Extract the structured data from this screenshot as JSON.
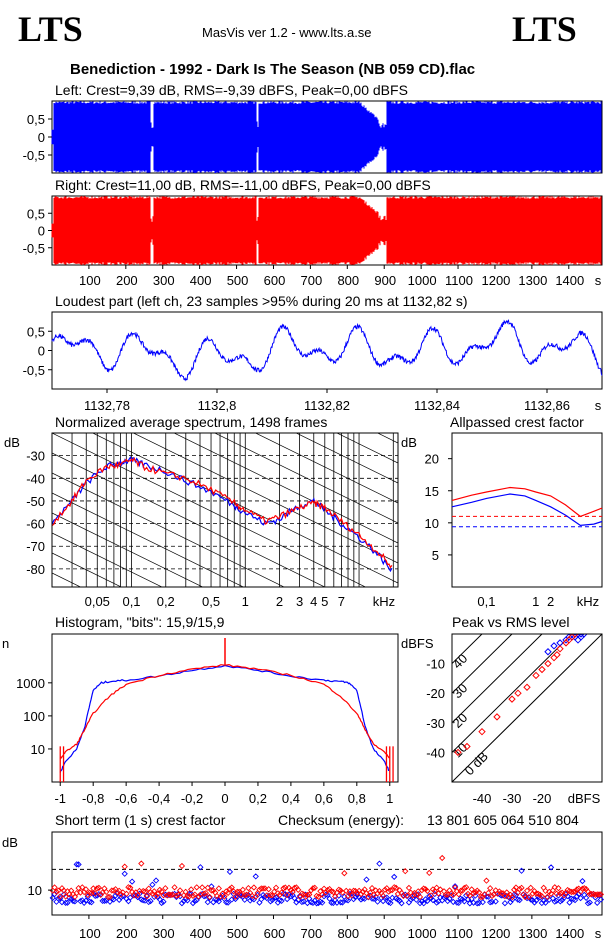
{
  "header": {
    "logo_left": "LTS",
    "logo_right": "LTS",
    "app": "MasVis ver 1.2 - www.lts.a.se",
    "file_title": "Benediction - 1992 - Dark Is The Season (NB 059 CD).flac"
  },
  "colors": {
    "left": "#0000ff",
    "right": "#ff0000",
    "bg": "#ffffff",
    "axis": "#000000"
  },
  "chart_data": [
    {
      "id": "left_waveform",
      "type": "area",
      "title": "Left: Crest=9,39 dB, RMS=-9,39 dBFS, Peak=0,00 dBFS",
      "ylabel_ticks": [
        "0,5",
        "0",
        "-0,5"
      ],
      "ylim": [
        -1,
        1
      ],
      "xlim": [
        0,
        1490
      ],
      "series": [
        {
          "name": "Left",
          "color": "#0000ff"
        }
      ],
      "gaps_s": [
        268,
        275,
        555,
        560,
        885,
        905
      ]
    },
    {
      "id": "right_waveform",
      "type": "area",
      "title": "Right: Crest=11,00 dB, RMS=-11,00 dBFS, Peak=0,00 dBFS",
      "ylabel_ticks": [
        "0,5",
        "0",
        "-0,5"
      ],
      "ylim": [
        -1,
        1
      ],
      "xlim": [
        0,
        1490
      ],
      "series": [
        {
          "name": "Right",
          "color": "#ff0000"
        }
      ],
      "x_ticks": [
        "100",
        "200",
        "300",
        "400",
        "500",
        "600",
        "700",
        "800",
        "900",
        "1000",
        "1100",
        "1200",
        "1300",
        "1400",
        "s"
      ],
      "x_tick_values": [
        100,
        200,
        300,
        400,
        500,
        600,
        700,
        800,
        900,
        1000,
        1100,
        1200,
        1300,
        1400
      ]
    },
    {
      "id": "loudest_part",
      "type": "line",
      "title": "Loudest part (left  ch, 23 samples >95% during 20 ms at 1132,82 s)",
      "ylabel_ticks": [
        "0,5",
        "0",
        "-0,5"
      ],
      "ylim": [
        -1,
        1
      ],
      "xlim": [
        1132.77,
        1132.87
      ],
      "x_ticks": [
        "1132,78",
        "1132,8",
        "1132,82",
        "1132,84",
        "1132,86",
        "s"
      ],
      "x_tick_values": [
        1132.78,
        1132.8,
        1132.82,
        1132.84,
        1132.86
      ],
      "series": [
        {
          "name": "Left",
          "color": "#0000ff"
        }
      ]
    },
    {
      "id": "spectrum",
      "type": "line",
      "title": "Normalized average spectrum, 1498 frames",
      "ylabel": "dB",
      "y_ticks": [
        "-30",
        "-40",
        "-50",
        "-60",
        "-70",
        "-80"
      ],
      "y_tick_values": [
        -30,
        -40,
        -50,
        -60,
        -70,
        -80
      ],
      "ylim": [
        -88,
        -20
      ],
      "xscale": "log",
      "xlim": [
        0.02,
        22
      ],
      "x_ticks": [
        "0,05",
        "0,1",
        "0,2",
        "0,5",
        "1",
        "2",
        "3",
        "4",
        "5",
        "7",
        "kHz"
      ],
      "x_tick_values": [
        0.05,
        0.1,
        0.2,
        0.5,
        1,
        2,
        3,
        4,
        5,
        7
      ],
      "series": [
        {
          "name": "Left",
          "color": "#0000ff",
          "x": [
            0.02,
            0.03,
            0.04,
            0.06,
            0.08,
            0.1,
            0.13,
            0.2,
            0.3,
            0.5,
            0.8,
            1.0,
            1.5,
            2.0,
            3.0,
            4.0,
            5.0,
            7.0,
            10,
            15,
            20
          ],
          "y": [
            -60,
            -50,
            -42,
            -35,
            -33,
            -32,
            -34,
            -37,
            -41,
            -46,
            -52,
            -55,
            -60,
            -58,
            -52,
            -50,
            -54,
            -60,
            -66,
            -74,
            -82
          ]
        },
        {
          "name": "Right",
          "color": "#ff0000",
          "x": [
            0.02,
            0.03,
            0.04,
            0.06,
            0.08,
            0.1,
            0.13,
            0.2,
            0.3,
            0.5,
            0.8,
            1.0,
            1.5,
            2.0,
            3.0,
            4.0,
            5.0,
            7.0,
            10,
            15,
            20
          ],
          "y": [
            -60,
            -50,
            -41,
            -35,
            -34,
            -32,
            -35,
            -38,
            -40,
            -45,
            -51,
            -54,
            -59,
            -57,
            -53,
            -51,
            -53,
            -59,
            -65,
            -73,
            -80
          ]
        }
      ]
    },
    {
      "id": "allpassed_crest",
      "type": "line",
      "title": "Allpassed crest factor",
      "ylabel": "dB",
      "y_ticks": [
        "20",
        "15",
        "10",
        "5"
      ],
      "y_tick_values": [
        20,
        15,
        10,
        5
      ],
      "ylim": [
        0,
        24
      ],
      "xscale": "log",
      "xlim": [
        0.02,
        22
      ],
      "x_ticks": [
        "0,1",
        "1",
        "2",
        "kHz"
      ],
      "x_tick_values": [
        0.1,
        1,
        2
      ],
      "dashed_levels": [
        {
          "color": "#ff0000",
          "y": 11.0
        },
        {
          "color": "#0000ff",
          "y": 9.39
        }
      ],
      "series": [
        {
          "name": "Left",
          "color": "#0000ff",
          "x": [
            0.02,
            0.05,
            0.1,
            0.3,
            0.6,
            1,
            2,
            4,
            8,
            15,
            22
          ],
          "y": [
            12.5,
            13.2,
            13.8,
            14.5,
            14.2,
            13.5,
            12.5,
            11.2,
            9.6,
            9.8,
            10.2
          ]
        },
        {
          "name": "Right",
          "color": "#ff0000",
          "x": [
            0.02,
            0.05,
            0.1,
            0.3,
            0.6,
            1,
            2,
            4,
            8,
            15,
            22
          ],
          "y": [
            13.5,
            14.3,
            14.8,
            15.5,
            15.3,
            14.8,
            14.2,
            12.8,
            11.0,
            11.8,
            12.3
          ]
        }
      ]
    },
    {
      "id": "histogram",
      "type": "line",
      "title": "Histogram, \"bits\": 15,9/15,9",
      "ylabel": "n",
      "yscale": "log",
      "ylim": [
        1,
        30000
      ],
      "y_ticks": [
        "1000",
        "100",
        "10"
      ],
      "y_tick_values": [
        1000,
        100,
        10
      ],
      "xlim": [
        -1.05,
        1.05
      ],
      "x_ticks": [
        "-1",
        "-0,8",
        "-0,6",
        "-0,4",
        "-0,2",
        "0",
        "0,2",
        "0,4",
        "0,6",
        "0,8",
        "1"
      ],
      "x_tick_values": [
        -1,
        -0.8,
        -0.6,
        -0.4,
        -0.2,
        0,
        0.2,
        0.4,
        0.6,
        0.8,
        1
      ],
      "series": [
        {
          "name": "Left",
          "color": "#0000ff",
          "x": [
            -1,
            -0.97,
            -0.9,
            -0.85,
            -0.8,
            -0.75,
            -0.7,
            -0.6,
            -0.4,
            -0.2,
            0,
            0.2,
            0.4,
            0.6,
            0.7,
            0.75,
            0.8,
            0.85,
            0.9,
            0.97,
            1
          ],
          "y": [
            2,
            4,
            10,
            50,
            600,
            1000,
            1100,
            1200,
            1600,
            2400,
            3300,
            2400,
            1600,
            1200,
            1100,
            1000,
            600,
            50,
            10,
            4,
            2
          ]
        },
        {
          "name": "Right",
          "color": "#ff0000",
          "x": [
            -1,
            -0.97,
            -0.9,
            -0.85,
            -0.8,
            -0.7,
            -0.6,
            -0.4,
            -0.2,
            0,
            0.2,
            0.4,
            0.6,
            0.7,
            0.8,
            0.85,
            0.9,
            0.97,
            1
          ],
          "y": [
            5,
            8,
            14,
            40,
            120,
            400,
            900,
            1700,
            2600,
            3500,
            2600,
            1700,
            900,
            400,
            120,
            40,
            14,
            8,
            5
          ]
        }
      ]
    },
    {
      "id": "peak_vs_rms",
      "type": "scatter",
      "title": "Peak vs RMS level",
      "ylabel": "dBFS",
      "xlabel": "dBFS",
      "y_ticks": [
        "-10",
        "-20",
        "-30",
        "-40"
      ],
      "y_tick_values": [
        -10,
        -20,
        -30,
        -40
      ],
      "ylim": [
        -50,
        0
      ],
      "x_ticks": [
        "-40",
        "-30",
        "-20"
      ],
      "x_tick_values": [
        -40,
        -30,
        -20
      ],
      "xlim": [
        -50,
        0
      ],
      "crest_lines": [
        "40",
        "30",
        "20",
        "10",
        "0 dB"
      ],
      "crest_values": [
        40,
        30,
        20,
        10,
        0
      ],
      "series": [
        {
          "name": "Left",
          "color": "#0000ff",
          "x": [
            -12,
            -11,
            -10,
            -9,
            -9,
            -8,
            -8,
            -7,
            -7,
            -6,
            -14,
            -18,
            -16
          ],
          "y": [
            -2,
            -1,
            -1,
            0,
            -1,
            0,
            -2,
            0,
            -1,
            0,
            -3,
            -6,
            -4
          ]
        },
        {
          "name": "Right",
          "color": "#ff0000",
          "x": [
            -48,
            -45,
            -40,
            -35,
            -30,
            -28,
            -25,
            -22,
            -20,
            -18,
            -16,
            -15,
            -14,
            -12,
            -11,
            -10,
            -9
          ],
          "y": [
            -40,
            -38,
            -33,
            -28,
            -22,
            -20,
            -18,
            -14,
            -12,
            -10,
            -8,
            -7,
            -5,
            -3,
            -2,
            -1,
            0
          ]
        }
      ]
    },
    {
      "id": "short_term_crest",
      "type": "scatter",
      "title": "Short term (1 s) crest factor",
      "checksum_label": "Checksum (energy):",
      "checksum_value": "13 801 605 064 510 804",
      "ylabel": "dB",
      "y_ticks": [
        "10"
      ],
      "y_tick_values": [
        10
      ],
      "ylim": [
        4,
        24
      ],
      "xlim": [
        0,
        1490
      ],
      "dashed_level": 15,
      "x_ticks": [
        "100",
        "200",
        "300",
        "400",
        "500",
        "600",
        "700",
        "800",
        "900",
        "1000",
        "1100",
        "1200",
        "1300",
        "1400",
        "s"
      ],
      "x_tick_values": [
        100,
        200,
        300,
        400,
        500,
        600,
        700,
        800,
        900,
        1000,
        1100,
        1200,
        1300,
        1400
      ],
      "series": [
        {
          "name": "Left",
          "color": "#0000ff"
        },
        {
          "name": "Right",
          "color": "#ff0000"
        }
      ]
    }
  ]
}
